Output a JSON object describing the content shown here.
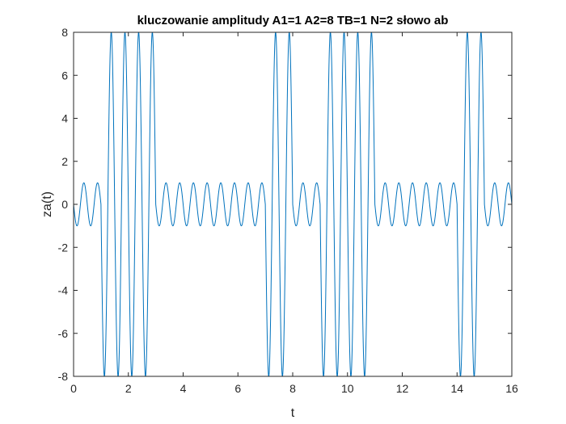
{
  "chart_data": {
    "type": "line",
    "title": "kluczowanie amplitudy A1=1 A2=8 TB=1 N=2 słowo ab",
    "xlabel": "t",
    "ylabel": "za(t)",
    "xlim": [
      0,
      16
    ],
    "ylim": [
      -8,
      8
    ],
    "xticks": [
      "0",
      "2",
      "4",
      "6",
      "8",
      "10",
      "12",
      "14",
      "16"
    ],
    "yticks": [
      "8",
      "6",
      "4",
      "2",
      "0",
      "-2",
      "-4",
      "-6",
      "-8"
    ],
    "grid": false,
    "legend": "none",
    "line_color": "#0072BD",
    "series": [
      {
        "signal": "-A*sin(2*pi*2*t)",
        "segments": [
          {
            "t": [
              0,
              1
            ],
            "A": 1
          },
          {
            "t": [
              1,
              3
            ],
            "A": 8
          },
          {
            "t": [
              3,
              7
            ],
            "A": 1
          },
          {
            "t": [
              7,
              8
            ],
            "A": 8
          },
          {
            "t": [
              8,
              9
            ],
            "A": 1
          },
          {
            "t": [
              9,
              11
            ],
            "A": 8
          },
          {
            "t": [
              11,
              14
            ],
            "A": 1
          },
          {
            "t": [
              14,
              15
            ],
            "A": 8
          },
          {
            "t": [
              15,
              16
            ],
            "A": 1
          }
        ]
      }
    ]
  }
}
